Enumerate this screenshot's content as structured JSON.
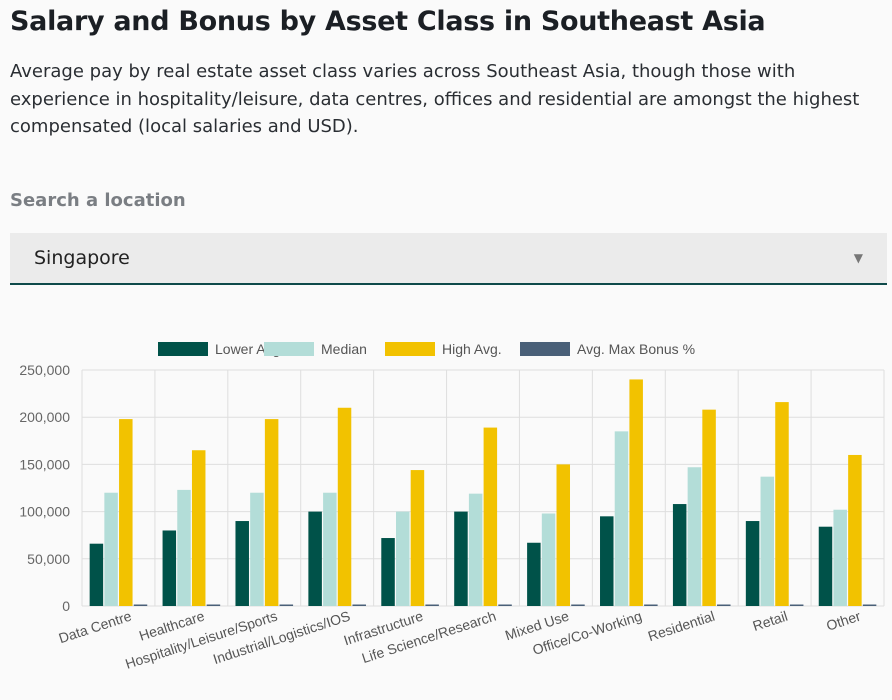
{
  "header": {
    "title": "Salary and Bonus by Asset Class in Southeast Asia",
    "subtitle": "Average pay by real estate asset class varies across Southeast Asia, though those with experience in hospitality/leisure, data centres, offices and residential are amongst the highest compensated (local salaries and USD)."
  },
  "search": {
    "label": "Search a location",
    "selected": "Singapore",
    "arrow_icon": "triangle-down-icon"
  },
  "chart_data": {
    "type": "bar",
    "categories": [
      "Data Centre",
      "Healthcare",
      "Hospitality/Leisure/Sports",
      "Industrial/Logistics/IOS",
      "Infrastructure",
      "Life Science/Research",
      "Mixed Use",
      "Office/Co-Working",
      "Residential",
      "Retail",
      "Other"
    ],
    "series": [
      {
        "name": "Lower Avg.",
        "color": "#005249",
        "values": [
          66000,
          80000,
          90000,
          100000,
          72000,
          100000,
          67000,
          95000,
          108000,
          90000,
          84000
        ]
      },
      {
        "name": "Median",
        "color": "#b3ddd8",
        "values": [
          120000,
          123000,
          120000,
          120000,
          100000,
          119000,
          98000,
          185000,
          147000,
          137000,
          102000
        ]
      },
      {
        "name": "High Avg.",
        "color": "#f2c200",
        "values": [
          198000,
          165000,
          198000,
          210000,
          144000,
          189000,
          150000,
          240000,
          208000,
          216000,
          160000
        ]
      },
      {
        "name": "Avg. Max Bonus %",
        "color": "#4a6078",
        "values": [
          15,
          15,
          15,
          15,
          15,
          15,
          15,
          15,
          15,
          15,
          15
        ]
      }
    ],
    "yticks": [
      "0",
      "50,000",
      "100,000",
      "150,000",
      "200,000",
      "250,000"
    ],
    "ylim": [
      0,
      250000
    ],
    "grid": true,
    "legend_position": "top-center"
  }
}
